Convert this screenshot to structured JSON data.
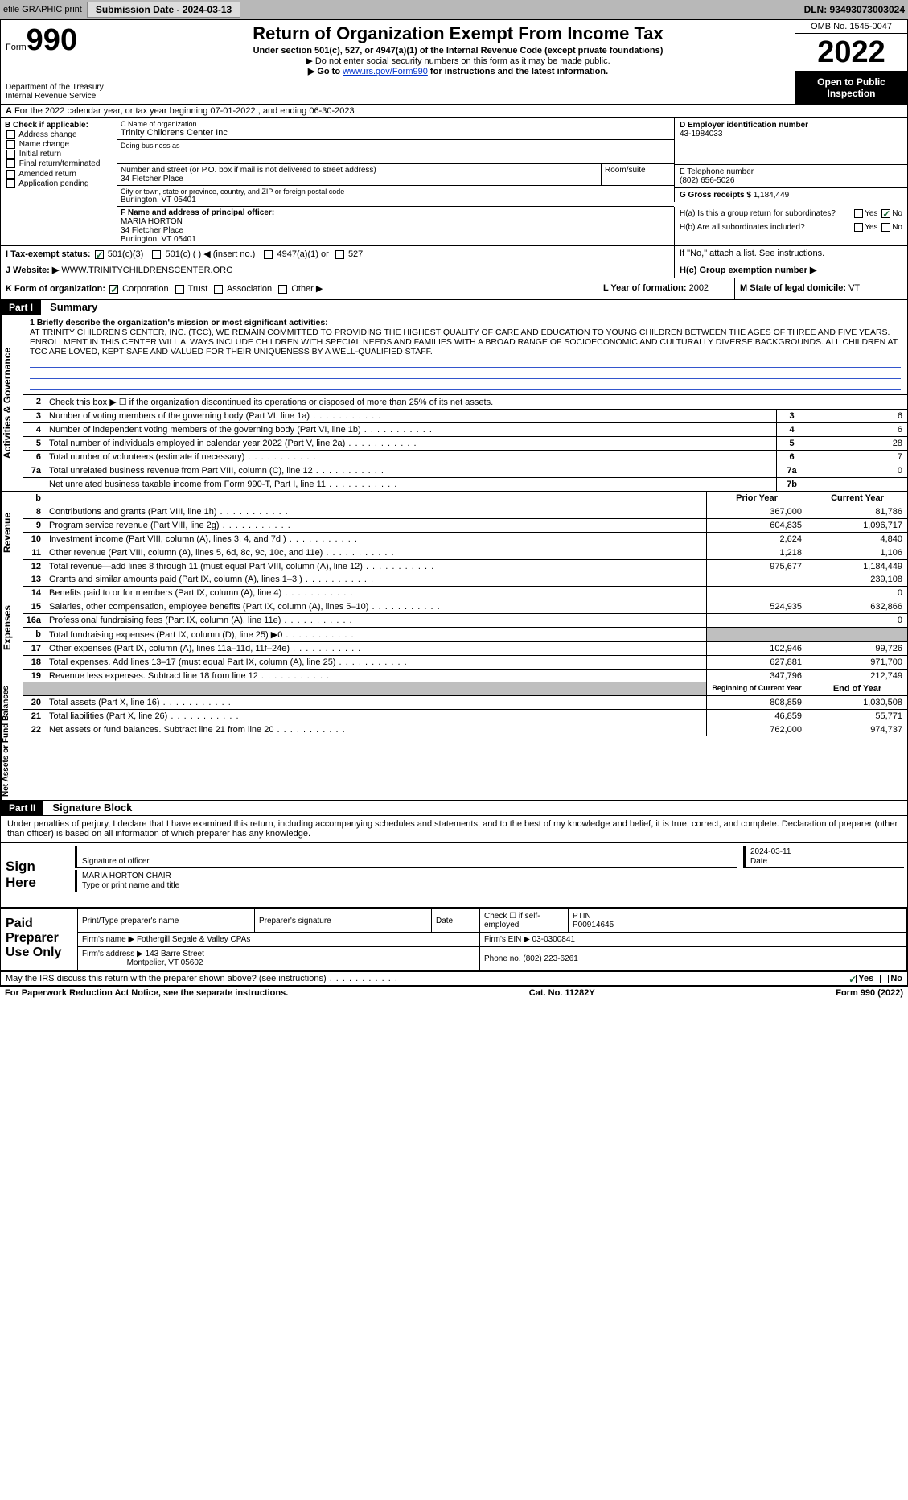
{
  "top": {
    "efile": "efile GRAPHIC print",
    "submission": "Submission Date - 2024-03-13",
    "dln": "DLN: 93493073003024"
  },
  "hdr": {
    "form_word": "Form",
    "form_num": "990",
    "title": "Return of Organization Exempt From Income Tax",
    "sub1": "Under section 501(c), 527, or 4947(a)(1) of the Internal Revenue Code (except private foundations)",
    "sub2": "▶ Do not enter social security numbers on this form as it may be made public.",
    "sub3_pre": "▶ Go to ",
    "sub3_link": "www.irs.gov/Form990",
    "sub3_post": " for instructions and the latest information.",
    "dept": "Department of the Treasury Internal Revenue Service",
    "omb": "OMB No. 1545-0047",
    "year": "2022",
    "open": "Open to Public Inspection"
  },
  "A": "For the 2022 calendar year, or tax year beginning 07-01-2022    , and ending 06-30-2023",
  "B": {
    "title": "B Check if applicable:",
    "opts": [
      "Address change",
      "Name change",
      "Initial return",
      "Final return/terminated",
      "Amended return",
      "Application pending"
    ]
  },
  "C": {
    "name_lbl": "C Name of organization",
    "name": "Trinity Childrens Center Inc",
    "dba_lbl": "Doing business as",
    "street_lbl": "Number and street (or P.O. box if mail is not delivered to street address)",
    "street": "34 Fletcher Place",
    "room_lbl": "Room/suite",
    "city_lbl": "City or town, state or province, country, and ZIP or foreign postal code",
    "city": "Burlington, VT  05401"
  },
  "D": {
    "lbl": "D Employer identification number",
    "val": "43-1984033"
  },
  "E": {
    "lbl": "E Telephone number",
    "val": "(802) 656-5026"
  },
  "G": {
    "lbl": "G Gross receipts $",
    "val": "1,184,449"
  },
  "F": {
    "lbl": "F  Name and address of principal officer:",
    "name": "MARIA HORTON",
    "street": "34 Fletcher Place",
    "city": "Burlington, VT  05401"
  },
  "H": {
    "a": "H(a)  Is this a group return for subordinates?",
    "b": "H(b)  Are all subordinates included?",
    "b_note": "If \"No,\" attach a list. See instructions.",
    "c": "H(c)  Group exemption number ▶",
    "yes": "Yes",
    "no": "No"
  },
  "I": {
    "lbl": "I   Tax-exempt status:",
    "o1": "501(c)(3)",
    "o2": "501(c) (  ) ◀ (insert no.)",
    "o3": "4947(a)(1) or",
    "o4": "527"
  },
  "J": {
    "lbl": "J   Website: ▶",
    "val": "WWW.TRINITYCHILDRENSCENTER.ORG"
  },
  "K": {
    "lbl": "K Form of organization:",
    "o1": "Corporation",
    "o2": "Trust",
    "o3": "Association",
    "o4": "Other ▶"
  },
  "L": {
    "lbl": "L Year of formation:",
    "val": "2002"
  },
  "M": {
    "lbl": "M State of legal domicile:",
    "val": "VT"
  },
  "partI": {
    "num": "Part I",
    "title": "Summary"
  },
  "sec_labels": {
    "ag": "Activities & Governance",
    "rev": "Revenue",
    "exp": "Expenses",
    "nab": "Net Assets or Fund Balances"
  },
  "mission": {
    "lbl": "1  Briefly describe the organization's mission or most significant activities:",
    "txt": "AT TRINITY CHILDREN'S CENTER, INC. (TCC), WE REMAIN COMMITTED TO PROVIDING THE HIGHEST QUALITY OF CARE AND EDUCATION TO YOUNG CHILDREN BETWEEN THE AGES OF THREE AND FIVE YEARS. ENROLLMENT IN THIS CENTER WILL ALWAYS INCLUDE CHILDREN WITH SPECIAL NEEDS AND FAMILIES WITH A BROAD RANGE OF SOCIOECONOMIC AND CULTURALLY DIVERSE BACKGROUNDS. ALL CHILDREN AT TCC ARE LOVED, KEPT SAFE AND VALUED FOR THEIR UNIQUENESS BY A WELL-QUALIFIED STAFF."
  },
  "line2": "Check this box ▶ ☐  if the organization discontinued its operations or disposed of more than 25% of its net assets.",
  "ag_lines": [
    {
      "n": "3",
      "t": "Number of voting members of the governing body (Part VI, line 1a)",
      "box": "3",
      "v": "6"
    },
    {
      "n": "4",
      "t": "Number of independent voting members of the governing body (Part VI, line 1b)",
      "box": "4",
      "v": "6"
    },
    {
      "n": "5",
      "t": "Total number of individuals employed in calendar year 2022 (Part V, line 2a)",
      "box": "5",
      "v": "28"
    },
    {
      "n": "6",
      "t": "Total number of volunteers (estimate if necessary)",
      "box": "6",
      "v": "7"
    },
    {
      "n": "7a",
      "t": "Total unrelated business revenue from Part VIII, column (C), line 12",
      "box": "7a",
      "v": "0"
    },
    {
      "n": "",
      "t": "Net unrelated business taxable income from Form 990-T, Part I, line 11",
      "box": "7b",
      "v": ""
    }
  ],
  "col_hdr": {
    "left": "b",
    "prior": "Prior Year",
    "current": "Current Year"
  },
  "rev_lines": [
    {
      "n": "8",
      "t": "Contributions and grants (Part VIII, line 1h)",
      "p": "367,000",
      "c": "81,786"
    },
    {
      "n": "9",
      "t": "Program service revenue (Part VIII, line 2g)",
      "p": "604,835",
      "c": "1,096,717"
    },
    {
      "n": "10",
      "t": "Investment income (Part VIII, column (A), lines 3, 4, and 7d )",
      "p": "2,624",
      "c": "4,840"
    },
    {
      "n": "11",
      "t": "Other revenue (Part VIII, column (A), lines 5, 6d, 8c, 9c, 10c, and 11e)",
      "p": "1,218",
      "c": "1,106"
    },
    {
      "n": "12",
      "t": "Total revenue—add lines 8 through 11 (must equal Part VIII, column (A), line 12)",
      "p": "975,677",
      "c": "1,184,449"
    }
  ],
  "exp_lines": [
    {
      "n": "13",
      "t": "Grants and similar amounts paid (Part IX, column (A), lines 1–3 )",
      "p": "",
      "c": "239,108"
    },
    {
      "n": "14",
      "t": "Benefits paid to or for members (Part IX, column (A), line 4)",
      "p": "",
      "c": "0"
    },
    {
      "n": "15",
      "t": "Salaries, other compensation, employee benefits (Part IX, column (A), lines 5–10)",
      "p": "524,935",
      "c": "632,866"
    },
    {
      "n": "16a",
      "t": "Professional fundraising fees (Part IX, column (A), line 11e)",
      "p": "",
      "c": "0"
    },
    {
      "n": "b",
      "t": "Total fundraising expenses (Part IX, column (D), line 25) ▶0",
      "p": "GRAY",
      "c": "GRAY"
    },
    {
      "n": "17",
      "t": "Other expenses (Part IX, column (A), lines 11a–11d, 11f–24e)",
      "p": "102,946",
      "c": "99,726"
    },
    {
      "n": "18",
      "t": "Total expenses. Add lines 13–17 (must equal Part IX, column (A), line 25)",
      "p": "627,881",
      "c": "971,700"
    },
    {
      "n": "19",
      "t": "Revenue less expenses. Subtract line 18 from line 12",
      "p": "347,796",
      "c": "212,749"
    }
  ],
  "nab_hdr": {
    "p": "Beginning of Current Year",
    "c": "End of Year"
  },
  "nab_lines": [
    {
      "n": "20",
      "t": "Total assets (Part X, line 16)",
      "p": "808,859",
      "c": "1,030,508"
    },
    {
      "n": "21",
      "t": "Total liabilities (Part X, line 26)",
      "p": "46,859",
      "c": "55,771"
    },
    {
      "n": "22",
      "t": "Net assets or fund balances. Subtract line 21 from line 20",
      "p": "762,000",
      "c": "974,737"
    }
  ],
  "partII": {
    "num": "Part II",
    "title": "Signature Block"
  },
  "penalty": "Under penalties of perjury, I declare that I have examined this return, including accompanying schedules and statements, and to the best of my knowledge and belief, it is true, correct, and complete. Declaration of preparer (other than officer) is based on all information of which preparer has any knowledge.",
  "sign": {
    "here": "Sign Here",
    "sig_lbl": "Signature of officer",
    "date_lbl": "Date",
    "date": "2024-03-11",
    "name": "MARIA HORTON  CHAIR",
    "name_lbl": "Type or print name and title"
  },
  "prep": {
    "title": "Paid Preparer Use Only",
    "h1": "Print/Type preparer's name",
    "h2": "Preparer's signature",
    "h3": "Date",
    "chk": "Check ☐ if self-employed",
    "ptin_lbl": "PTIN",
    "ptin": "P00914645",
    "firm_lbl": "Firm's name    ▶",
    "firm": "Fothergill Segale & Valley CPAs",
    "ein_lbl": "Firm's EIN ▶",
    "ein": "03-0300841",
    "addr_lbl": "Firm's address ▶",
    "addr1": "143 Barre Street",
    "addr2": "Montpelier, VT  05602",
    "phone_lbl": "Phone no.",
    "phone": "(802) 223-6261"
  },
  "discuss": {
    "q": "May the IRS discuss this return with the preparer shown above? (see instructions)",
    "yes": "Yes",
    "no": "No"
  },
  "pra": {
    "l": "For Paperwork Reduction Act Notice, see the separate instructions.",
    "m": "Cat. No. 11282Y",
    "r": "Form 990 (2022)"
  }
}
